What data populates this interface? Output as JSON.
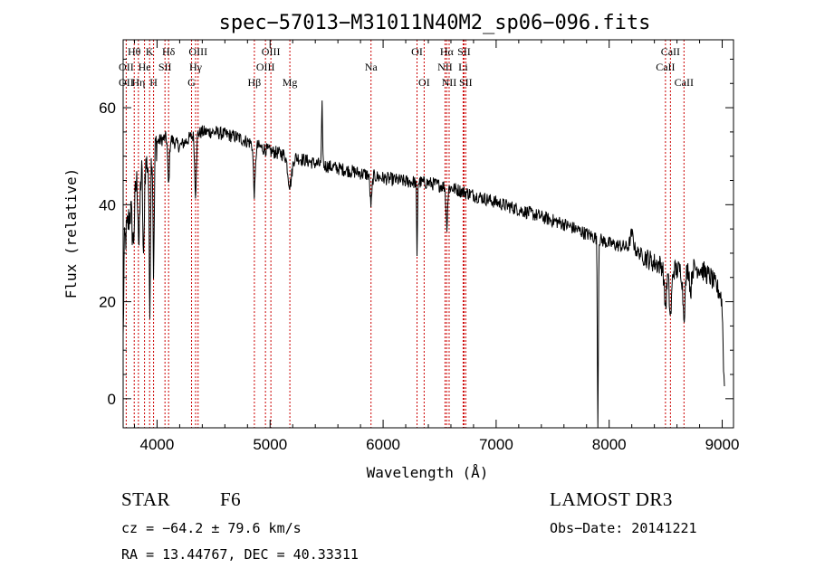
{
  "chart_data": {
    "type": "line",
    "title": "spec−57013−M31011N40M2_sp06−096.fits",
    "xlabel": "Wavelength (Å)",
    "ylabel": "Flux (relative)",
    "xlim": [
      3700,
      9100
    ],
    "ylim": [
      -6,
      74
    ],
    "xticks": [
      4000,
      5000,
      6000,
      7000,
      8000,
      9000
    ],
    "yticks": [
      0,
      20,
      40,
      60
    ],
    "series": [
      {
        "name": "spectrum",
        "continuum": [
          [
            3700,
            30
          ],
          [
            3800,
            44
          ],
          [
            3900,
            48
          ],
          [
            4000,
            53
          ],
          [
            4100,
            54
          ],
          [
            4200,
            52
          ],
          [
            4300,
            54
          ],
          [
            4400,
            55
          ],
          [
            4500,
            55
          ],
          [
            4700,
            54
          ],
          [
            4800,
            53
          ],
          [
            4900,
            52
          ],
          [
            5000,
            51
          ],
          [
            5200,
            50
          ],
          [
            5400,
            48.5
          ],
          [
            5600,
            47.5
          ],
          [
            5800,
            46.5
          ],
          [
            6000,
            45.5
          ],
          [
            6200,
            44.8
          ],
          [
            6400,
            44.5
          ],
          [
            6600,
            43.5
          ],
          [
            6800,
            42
          ],
          [
            7000,
            40.5
          ],
          [
            7200,
            39
          ],
          [
            7400,
            37.5
          ],
          [
            7600,
            36
          ],
          [
            7800,
            34
          ],
          [
            8000,
            32
          ],
          [
            8200,
            31
          ],
          [
            8400,
            28
          ],
          [
            8600,
            26.5
          ],
          [
            8800,
            27
          ],
          [
            8900,
            25
          ],
          [
            9000,
            21
          ]
        ],
        "features": [
          [
            3700,
            6,
            -18
          ],
          [
            3790,
            15,
            -10
          ],
          [
            3840,
            10,
            -14
          ],
          [
            3880,
            8,
            -20
          ],
          [
            3935,
            8,
            -30
          ],
          [
            3970,
            8,
            -26
          ],
          [
            4102,
            10,
            -10
          ],
          [
            4340,
            10,
            -12
          ],
          [
            4861,
            12,
            -10
          ],
          [
            5175,
            25,
            -6
          ],
          [
            5460,
            6,
            12
          ],
          [
            5893,
            12,
            -6
          ],
          [
            6300,
            5,
            -16
          ],
          [
            6563,
            10,
            -8
          ],
          [
            7900,
            6,
            -40
          ],
          [
            8200,
            20,
            3
          ],
          [
            8498,
            15,
            -8
          ],
          [
            8542,
            15,
            -10
          ],
          [
            8662,
            15,
            -9
          ],
          [
            8720,
            10,
            -5
          ],
          [
            9020,
            15,
            -18
          ]
        ]
      }
    ],
    "lines": [
      {
        "label": "Hθ",
        "wave": 3798,
        "row": 1
      },
      {
        "label": "OII",
        "wave": 3727,
        "row": 2
      },
      {
        "label": "OII",
        "wave": 3727,
        "row": 3
      },
      {
        "label": "Hη",
        "wave": 3835,
        "row": 3
      },
      {
        "label": "K",
        "wave": 3934,
        "row": 1
      },
      {
        "label": "He",
        "wave": 3889,
        "row": 2
      },
      {
        "label": "H",
        "wave": 3969,
        "row": 3
      },
      {
        "label": "Hδ",
        "wave": 4102,
        "row": 1
      },
      {
        "label": "SII",
        "wave": 4070,
        "row": 2
      },
      {
        "label": "OIII",
        "wave": 4363,
        "row": 1
      },
      {
        "label": "Hγ",
        "wave": 4341,
        "row": 2
      },
      {
        "label": "G",
        "wave": 4305,
        "row": 3
      },
      {
        "label": "OIII",
        "wave": 5007,
        "row": 1
      },
      {
        "label": "OIII",
        "wave": 4959,
        "row": 2
      },
      {
        "label": "Hβ",
        "wave": 4861,
        "row": 3
      },
      {
        "label": "Mg",
        "wave": 5175,
        "row": 3
      },
      {
        "label": "Na",
        "wave": 5893,
        "row": 2
      },
      {
        "label": "OI",
        "wave": 6300,
        "row": 1
      },
      {
        "label": "OI",
        "wave": 6363,
        "row": 3
      },
      {
        "label": "Hα",
        "wave": 6563,
        "row": 1
      },
      {
        "label": "SII",
        "wave": 6716,
        "row": 1
      },
      {
        "label": "NII",
        "wave": 6548,
        "row": 2
      },
      {
        "label": "Li",
        "wave": 6708,
        "row": 2
      },
      {
        "label": "NII",
        "wave": 6584,
        "row": 3
      },
      {
        "label": "SII",
        "wave": 6731,
        "row": 3
      },
      {
        "label": "CaII",
        "wave": 8542,
        "row": 1
      },
      {
        "label": "CaII",
        "wave": 8498,
        "row": 2
      },
      {
        "label": "CaII",
        "wave": 8662,
        "row": 3
      }
    ]
  },
  "info": {
    "class_label": "STAR",
    "subclass": "F6",
    "survey": "LAMOST DR3",
    "cz": "cz = −64.2 ± 79.6 km/s",
    "obs_date": "Obs−Date: 20141221",
    "radec": "RA =  13.44767, DEC =  40.33311"
  },
  "colors": {
    "spectrum": "#000000",
    "line_marker": "#cc0000",
    "axis": "#000000"
  }
}
